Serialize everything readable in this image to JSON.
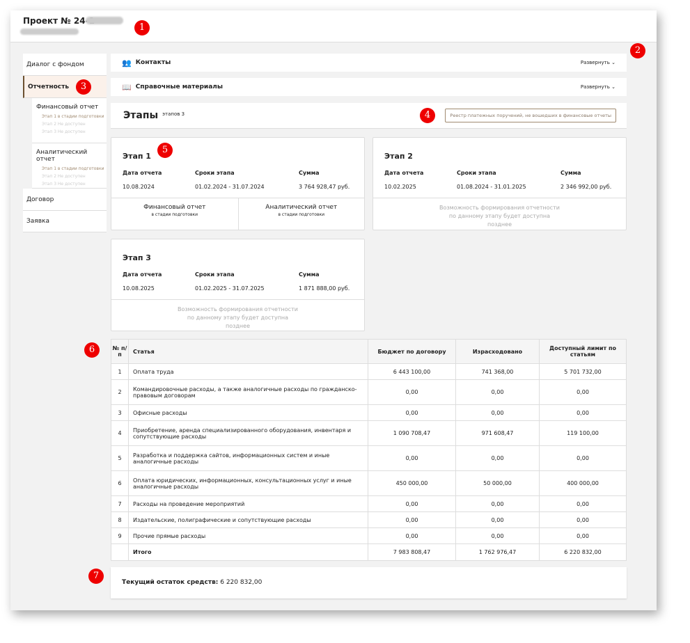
{
  "header": {
    "title": "Проект № 24-1"
  },
  "callouts": [
    "1",
    "2",
    "3",
    "4",
    "5",
    "6",
    "7"
  ],
  "sidebar": {
    "items": [
      {
        "label": "Диалог с фондом"
      },
      {
        "label": "Отчетность"
      },
      {
        "label": "Договор"
      },
      {
        "label": "Заявка"
      }
    ],
    "sub": [
      {
        "title": "Финансовый отчет",
        "items": [
          "Этап 1 в стадии подготовки",
          "Этап 2 Не доступен",
          "Этап 3 Не доступен"
        ]
      },
      {
        "title": "Аналитический отчет",
        "items": [
          "Этап 1 в стадии подготовки",
          "Этап 2 Не доступен",
          "Этап 3 Не доступен"
        ]
      }
    ]
  },
  "bars": {
    "contacts": "Контакты",
    "refs": "Справочные материалы",
    "expand": "Развернуть"
  },
  "stages": {
    "title": "Этапы",
    "count": "этапов 3",
    "registry_button": "Реестр платежных поручений, не вошедших в финансовые отчеты",
    "labels": {
      "date": "Дата отчета",
      "period": "Сроки этапа",
      "sum": "Сумма"
    },
    "unavailable": "Возможность формирования отчетности по данному этапу будет доступна позднее",
    "items": [
      {
        "title": "Этап 1",
        "date": "10.08.2024",
        "period": "01.02.2024 - 31.07.2024",
        "sum": "3 764 928,47 руб.",
        "reports": [
          {
            "title": "Финансовый отчет",
            "status": "в стадии подготовки"
          },
          {
            "title": "Аналитический отчет",
            "status": "в стадии подготовки"
          }
        ]
      },
      {
        "title": "Этап 2",
        "date": "10.02.2025",
        "period": "01.08.2024 - 31.01.2025",
        "sum": "2 346 992,00 руб."
      },
      {
        "title": "Этап 3",
        "date": "10.08.2025",
        "period": "01.02.2025 - 31.07.2025",
        "sum": "1 871 888,00 руб."
      }
    ]
  },
  "budget": {
    "headers": [
      "№ п/п",
      "Статья",
      "Бюджет по договору",
      "Израсходовано",
      "Доступный лимит по статьям"
    ],
    "rows": [
      [
        "1",
        "Оплата труда",
        "6 443 100,00",
        "741 368,00",
        "5 701 732,00"
      ],
      [
        "2",
        "Командировочные расходы, а также аналогичные расходы по гражданско-правовым договорам",
        "0,00",
        "0,00",
        "0,00"
      ],
      [
        "3",
        "Офисные расходы",
        "0,00",
        "0,00",
        "0,00"
      ],
      [
        "4",
        "Приобретение, аренда специализированного оборудования, инвентаря и сопутствующие расходы",
        "1 090 708,47",
        "971 608,47",
        "119 100,00"
      ],
      [
        "5",
        "Разработка и поддержка сайтов, информационных систем и иные аналогичные расходы",
        "0,00",
        "0,00",
        "0,00"
      ],
      [
        "6",
        "Оплата юридических, информационных, консультационных услуг и иные аналогичные расходы",
        "450 000,00",
        "50 000,00",
        "400 000,00"
      ],
      [
        "7",
        "Расходы на проведение мероприятий",
        "0,00",
        "0,00",
        "0,00"
      ],
      [
        "8",
        "Издательские, полиграфические и сопутствующие расходы",
        "0,00",
        "0,00",
        "0,00"
      ],
      [
        "9",
        "Прочие прямые расходы",
        "0,00",
        "0,00",
        "0,00"
      ]
    ],
    "total": [
      "",
      "Итого",
      "7 983 808,47",
      "1 762 976,47",
      "6 220 832,00"
    ]
  },
  "balance": {
    "label": "Текущий остаток средств:",
    "value": "6 220 832,00"
  }
}
